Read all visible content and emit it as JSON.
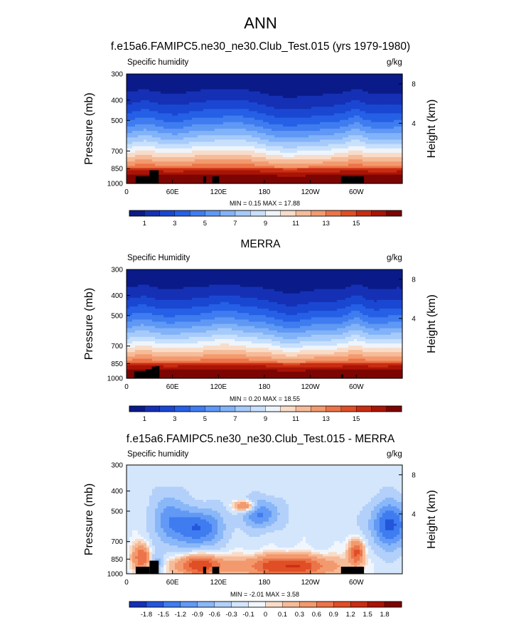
{
  "figure": {
    "title": "ANN"
  },
  "colors": {
    "seq": [
      "#0a1a88",
      "#1530b4",
      "#1a47d2",
      "#2560e6",
      "#3f7cf0",
      "#5f98f5",
      "#82b2f8",
      "#a6cbfa",
      "#c8e0fc",
      "#eef4fb",
      "#f9dcc8",
      "#f6bb98",
      "#f29a6e",
      "#ec7448",
      "#e04e26",
      "#c92d12",
      "#a91406",
      "#7c0502"
    ],
    "diff": [
      "#1530b4",
      "#2456dc",
      "#3f7cf0",
      "#6299f5",
      "#8ab7f8",
      "#b2d0fa",
      "#d4e6fc",
      "#f1f6fc",
      "#f9dcc8",
      "#f6bb98",
      "#f29a6e",
      "#ec7448",
      "#e04e26",
      "#c92d12",
      "#a91406",
      "#7c0502"
    ],
    "terrain": "#000000"
  },
  "chart_data": [
    {
      "type": "heatmap",
      "title": "f.e15a6.FAMIPC5.ne30_ne30.Club_Test.015 (yrs 1979-1980)",
      "left_label": "Specific humidity",
      "right_label": "g/kg",
      "ylabel": "Pressure (mb)",
      "y2label": "Height (km)",
      "xticks": [
        "0",
        "60E",
        "120E",
        "180",
        "120W",
        "60W"
      ],
      "yticks": [
        "300",
        "400",
        "500",
        "700",
        "850",
        "1000"
      ],
      "y2ticks": [
        "8",
        "4"
      ],
      "xlim": [
        0,
        360
      ],
      "ylim": [
        1000,
        300
      ],
      "stats": "MIN =   0.15  MAX =  17.88",
      "min": 0.15,
      "max": 17.88,
      "colorbar_labels": [
        "1",
        "3",
        "5",
        "7",
        "9",
        "11",
        "13",
        "15"
      ]
    },
    {
      "type": "heatmap",
      "title": "MERRA",
      "left_label": "Specific Humidity",
      "right_label": "g/kg",
      "ylabel": "Pressure (mb)",
      "y2label": "Height (km)",
      "xticks": [
        "0",
        "60E",
        "120E",
        "180",
        "120W",
        "60W"
      ],
      "yticks": [
        "300",
        "400",
        "500",
        "700",
        "850",
        "1000"
      ],
      "y2ticks": [
        "8",
        "4"
      ],
      "xlim": [
        0,
        360
      ],
      "ylim": [
        1000,
        300
      ],
      "stats": "MIN =   0.20  MAX =  18.55",
      "min": 0.2,
      "max": 18.55,
      "colorbar_labels": [
        "1",
        "3",
        "5",
        "7",
        "9",
        "11",
        "13",
        "15"
      ]
    },
    {
      "type": "heatmap",
      "title": "f.e15a6.FAMIPC5.ne30_ne30.Club_Test.015 - MERRA",
      "left_label": "Specific humidity",
      "right_label": "g/kg",
      "ylabel": "Pressure (mb)",
      "y2label": "Height (km)",
      "xticks": [
        "0",
        "60E",
        "120E",
        "180",
        "120W",
        "60W"
      ],
      "yticks": [
        "300",
        "400",
        "500",
        "700",
        "850",
        "1000"
      ],
      "y2ticks": [
        "8",
        "4"
      ],
      "xlim": [
        0,
        360
      ],
      "ylim": [
        1000,
        300
      ],
      "stats": "MIN =  -2.01  MAX =   3.58",
      "min": -2.01,
      "max": 3.58,
      "colorbar_labels": [
        "-1.8",
        "-1.5",
        "-1.2",
        "-0.9",
        "-0.6",
        "-0.3",
        "-0.1",
        "0",
        "0.1",
        "0.3",
        "0.6",
        "0.9",
        "1.2",
        "1.5",
        "1.8"
      ]
    }
  ]
}
